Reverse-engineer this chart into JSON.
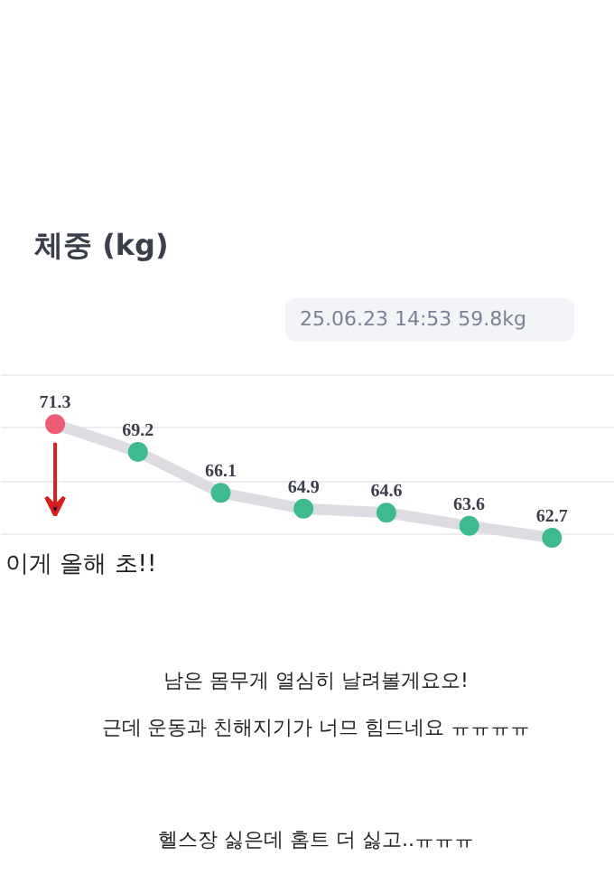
{
  "chart_data": {
    "type": "line",
    "title": "체중 (kg)",
    "annotations": [
      "25.06.23 14:53 59.8kg",
      "이게 올해 초!!",
      "남은 몸무게 열심히 날려볼게요오!",
      "근데 운동과 친해지기가 너므 힘드네요 ㅠㅠㅠㅠ",
      "헬스장 싫은데 홈트 더 싫고..ㅠㅠㅠ"
    ],
    "categories": [
      null,
      null,
      null,
      null,
      null,
      null,
      null
    ],
    "series": [
      {
        "color": "#dcdce2",
        "colors": [
          "#ec5b73",
          "#3dbb8f",
          "#3dbb8f",
          "#3dbb8f",
          "#3dbb8f",
          "#3dbb8f",
          "#3dbb8f"
        ],
        "values": [
          71.3,
          69.2,
          66.1,
          64.9,
          64.6,
          63.6,
          62.7
        ]
      }
    ],
    "ylim": [
      59,
      76.8
    ],
    "yticks": [
      {
        "value": 63,
        "label": null
      },
      {
        "value": 67,
        "label": null
      },
      {
        "value": 71,
        "label": null
      },
      {
        "value": 75,
        "label": null
      }
    ],
    "grid": "y",
    "tick_labels": false,
    "data_labels": true,
    "marker": "circle",
    "line_style": "solid"
  }
}
